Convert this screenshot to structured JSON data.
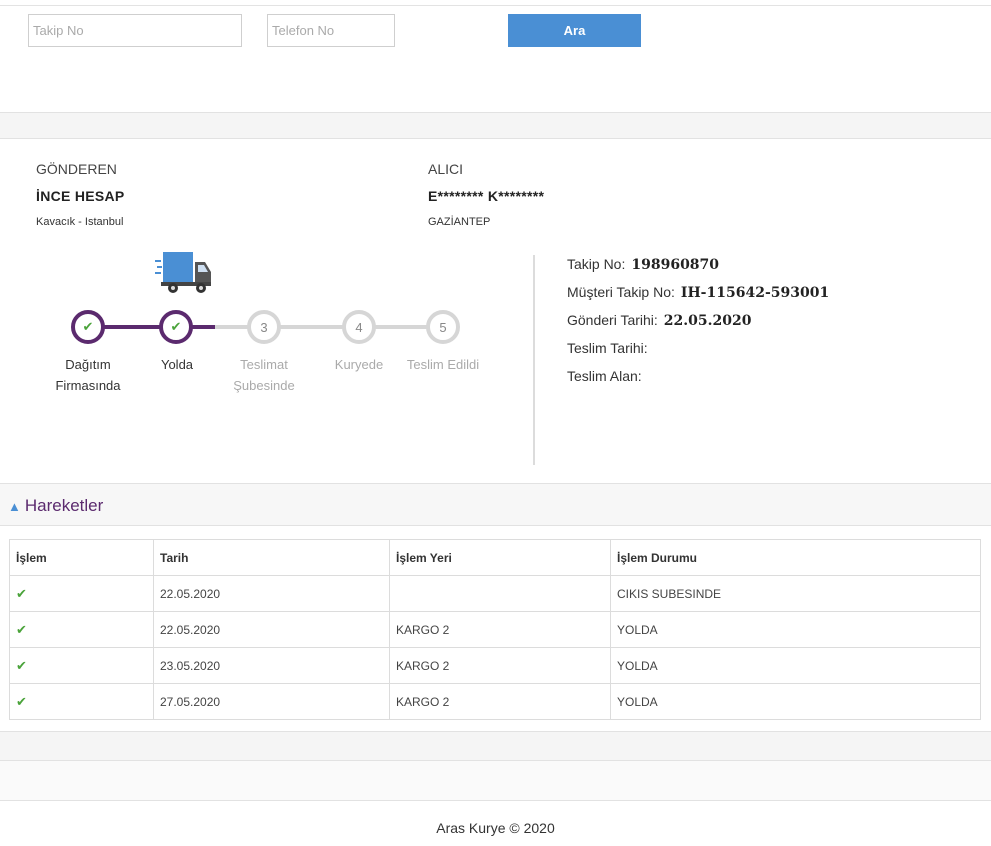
{
  "search": {
    "takip_placeholder": "Takip No",
    "telefon_placeholder": "Telefon No",
    "button_label": "Ara"
  },
  "sender": {
    "label": "GÖNDEREN",
    "name": "İNCE HESAP",
    "location": "Kavacık -  Istanbul"
  },
  "receiver": {
    "label": "ALICI",
    "name": "E******** K********",
    "location": "GAZİANTEP"
  },
  "progress": {
    "completed_steps": 2,
    "steps": [
      {
        "marker": "✔",
        "label_line1": "Dağıtım",
        "label_line2": "Firmasında",
        "done": true
      },
      {
        "marker": "✔",
        "label_line1": "Yolda",
        "label_line2": "",
        "done": true
      },
      {
        "marker": "3",
        "label_line1": "Teslimat",
        "label_line2": "Şubesinde",
        "done": false
      },
      {
        "marker": "4",
        "label_line1": "Kuryede",
        "label_line2": "",
        "done": false
      },
      {
        "marker": "5",
        "label_line1": "Teslim Edildi",
        "label_line2": "",
        "done": false
      }
    ]
  },
  "details": {
    "takip_label": "Takip No:",
    "takip_value": "198960870",
    "musteri_label": "Müşteri Takip No:",
    "musteri_value": "IH-115642-593001",
    "gonderi_label": "Gönderi Tarihi:",
    "gonderi_value": "22.05.2020",
    "teslim_tarihi_label": "Teslim Tarihi:",
    "teslim_alan_label": "Teslim Alan:"
  },
  "movements": {
    "title": "Hareketler",
    "headers": [
      "İşlem",
      "Tarih",
      "İşlem Yeri",
      "İşlem Durumu"
    ],
    "rows": [
      {
        "date": "22.05.2020",
        "place": "",
        "status": "CIKIS SUBESINDE"
      },
      {
        "date": "22.05.2020",
        "place": "KARGO 2",
        "status": "YOLDA"
      },
      {
        "date": "23.05.2020",
        "place": "KARGO 2",
        "status": "YOLDA"
      },
      {
        "date": "27.05.2020",
        "place": "KARGO 2",
        "status": "YOLDA"
      }
    ]
  },
  "footer": {
    "text": "Aras Kurye © 2020"
  },
  "colors": {
    "accent_blue": "#4a8fd4",
    "done_purple": "#5b2a6e",
    "todo_gray": "#d6d6d6",
    "check_green": "#4aa33a"
  }
}
